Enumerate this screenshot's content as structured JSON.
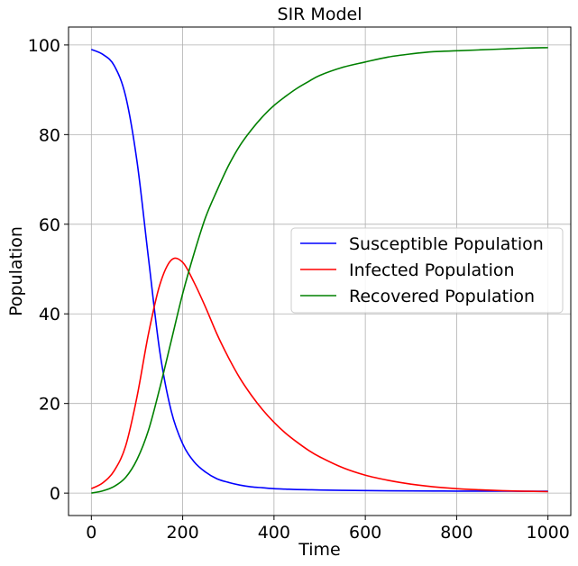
{
  "chart_data": {
    "type": "line",
    "title": "SIR Model",
    "xlabel": "Time",
    "ylabel": "Population",
    "xlim": [
      -50,
      1050
    ],
    "ylim": [
      -5,
      104
    ],
    "xticks": [
      0,
      200,
      400,
      600,
      800,
      1000
    ],
    "yticks": [
      0,
      20,
      40,
      60,
      80,
      100
    ],
    "grid": true,
    "legend_position": "center-right",
    "x": [
      0,
      25,
      50,
      75,
      100,
      125,
      150,
      175,
      200,
      225,
      250,
      275,
      300,
      325,
      350,
      375,
      400,
      425,
      450,
      475,
      500,
      550,
      600,
      650,
      700,
      750,
      800,
      850,
      900,
      950,
      1000
    ],
    "series": [
      {
        "name": "Susceptible Population",
        "color": "#0000ff",
        "values": [
          99.0,
          97.9,
          95.4,
          88.6,
          74.0,
          52.5,
          31.5,
          18.3,
          11.0,
          7.0,
          4.7,
          3.2,
          2.4,
          1.8,
          1.4,
          1.2,
          1.0,
          0.9,
          0.8,
          0.75,
          0.7,
          0.62,
          0.56,
          0.52,
          0.49,
          0.47,
          0.45,
          0.44,
          0.43,
          0.42,
          0.41
        ]
      },
      {
        "name": "Infected Population",
        "color": "#ff0000",
        "values": [
          1.0,
          2.3,
          5.0,
          10.5,
          21.5,
          35.5,
          46.5,
          52.0,
          51.5,
          47.0,
          41.5,
          35.5,
          30.3,
          25.7,
          21.9,
          18.6,
          15.8,
          13.4,
          11.4,
          9.6,
          8.1,
          5.7,
          4.0,
          2.85,
          2.0,
          1.4,
          1.0,
          0.75,
          0.55,
          0.42,
          0.33
        ]
      },
      {
        "name": "Recovered Population",
        "color": "#008000",
        "values": [
          0.0,
          0.5,
          1.5,
          3.5,
          7.5,
          14.0,
          23.5,
          34.0,
          44.5,
          53.5,
          61.5,
          67.5,
          73.0,
          77.5,
          81.0,
          84.0,
          86.5,
          88.5,
          90.3,
          91.8,
          93.2,
          95.0,
          96.2,
          97.3,
          98.0,
          98.5,
          98.7,
          98.9,
          99.1,
          99.3,
          99.4
        ]
      }
    ]
  }
}
